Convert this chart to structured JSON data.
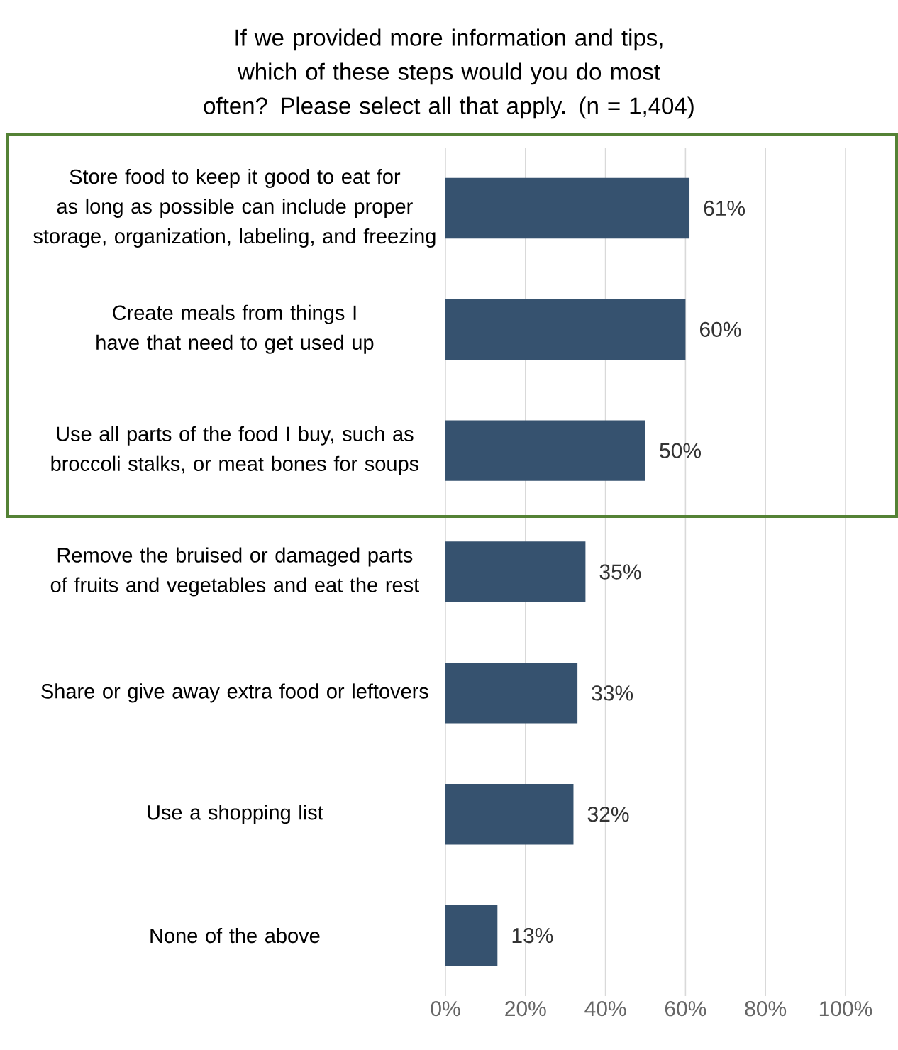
{
  "chart_data": {
    "type": "bar",
    "orientation": "horizontal",
    "title": "If we provided more information and tips, which of these steps would you do most often? Please select all that apply. (n = 1,404)",
    "categories": [
      "Store food to keep it good to eat for as long as possible can include proper storage, organization, labeling, and freezing",
      "Create meals from things I have that need to get used up",
      "Use all parts of the food I buy, such as broccoli stalks, or meat bones for soups",
      "Remove the bruised or damaged parts of fruits and vegetables and eat the rest",
      "Share or give away extra food or leftovers",
      "Use a shopping list",
      "None of the above"
    ],
    "values": [
      61,
      60,
      50,
      35,
      33,
      32,
      13
    ],
    "value_labels": [
      "61%",
      "60%",
      "50%",
      "35%",
      "33%",
      "32%",
      "13%"
    ],
    "color": "#36526f",
    "xlim": [
      0,
      100
    ],
    "xticks": [
      {
        "value": 0,
        "label": "0%"
      },
      {
        "value": 20,
        "label": "20%"
      },
      {
        "value": 40,
        "label": "40%"
      },
      {
        "value": 60,
        "label": "60%"
      },
      {
        "value": 80,
        "label": "80%"
      },
      {
        "value": 100,
        "label": "100%"
      }
    ],
    "grid": "x"
  }
}
